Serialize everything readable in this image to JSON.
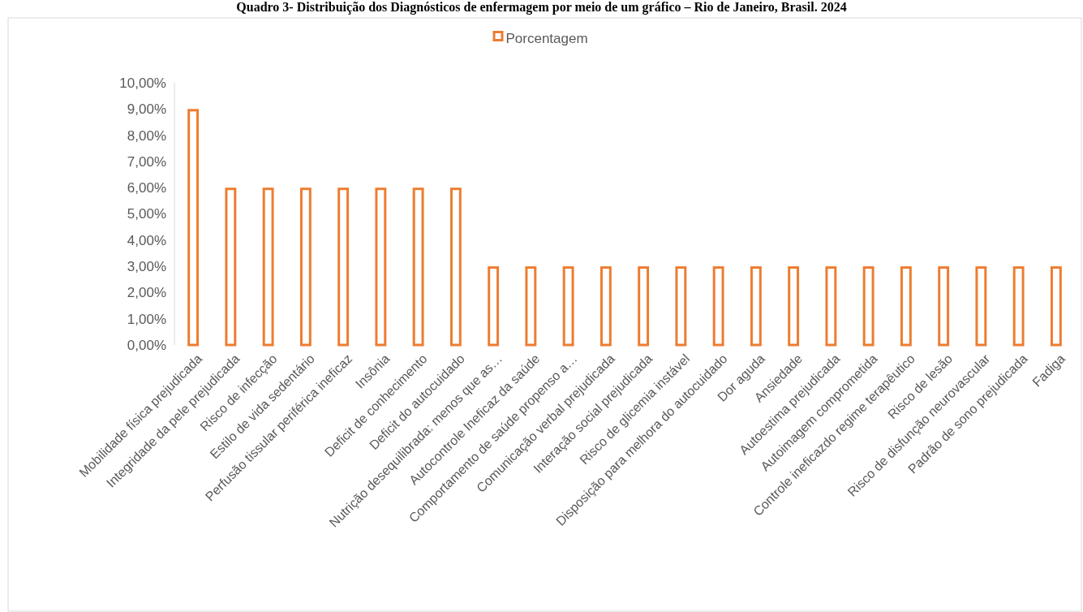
{
  "chart_data": {
    "type": "bar",
    "title": "Quadro 3- Distribuição dos Diagnósticos de enfermagem por meio de um gráfico – Rio de Janeiro, Brasil. 2024",
    "categories": [
      "Mobilidade física prejudicada",
      "Integridade da pele prejudicada",
      "Risco de infecção",
      "Estilo de vida sedentário",
      "Perfusão tissular periférica ineficaz",
      "Insônia",
      "Deficit de conhecimento",
      "Deficit do autocuidado",
      "Nutrição desequilibrada: menos que as…",
      "Autocontrole Ineficaz da saúde",
      "Comportamento de saúde propenso a…",
      "Comunicação verbal prejudicada",
      "Interação social prejudicada",
      "Risco de glicemia instável",
      "Disposição para melhora do autocuidado",
      "Dor aguda",
      "Ansiedade",
      "Autoestima prejudicada",
      "Autoimagem comprometida",
      "Controle ineficazdo regime terapêutico",
      "Risco de lesão",
      "Risco de disfunção neurovascular",
      "Padrão de sono prejudicada",
      "Fadiga"
    ],
    "series": [
      {
        "name": "Porcentagem",
        "color": "#ed7d31",
        "values": [
          9,
          6,
          6,
          6,
          6,
          6,
          6,
          6,
          3,
          3,
          3,
          3,
          3,
          3,
          3,
          3,
          3,
          3,
          3,
          3,
          3,
          3,
          3,
          3
        ]
      }
    ],
    "ylim": [
      0,
      10
    ],
    "yticks": [
      {
        "value": 0,
        "label": "0,00%"
      },
      {
        "value": 1,
        "label": "1,00%"
      },
      {
        "value": 2,
        "label": "2,00%"
      },
      {
        "value": 3,
        "label": "3,00%"
      },
      {
        "value": 4,
        "label": "4,00%"
      },
      {
        "value": 5,
        "label": "5,00%"
      },
      {
        "value": 6,
        "label": "6,00%"
      },
      {
        "value": 7,
        "label": "7,00%"
      },
      {
        "value": 8,
        "label": "8,00%"
      },
      {
        "value": 9,
        "label": "9,00%"
      },
      {
        "value": 10,
        "label": "10,00%"
      }
    ],
    "grid": false,
    "legend": "top"
  }
}
